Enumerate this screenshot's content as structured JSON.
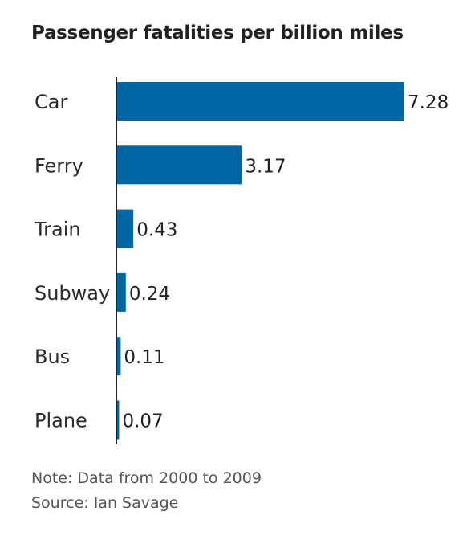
{
  "chart_data": {
    "type": "bar",
    "orientation": "horizontal",
    "title": "Passenger fatalities per billion miles",
    "categories": [
      "Car",
      "Ferry",
      "Train",
      "Subway",
      "Bus",
      "Plane"
    ],
    "values": [
      7.28,
      3.17,
      0.43,
      0.24,
      0.11,
      0.07
    ],
    "value_labels": [
      "7.28",
      "3.17",
      "0.43",
      "0.24",
      "0.11",
      "0.07"
    ],
    "xlim": [
      0,
      7.28
    ],
    "grid": false,
    "legend": "none",
    "bar_color": "#0066a4",
    "axis_color": "#222222"
  },
  "footer": {
    "note": "Note: Data from 2000 to 2009",
    "source": "Source: Ian Savage"
  }
}
